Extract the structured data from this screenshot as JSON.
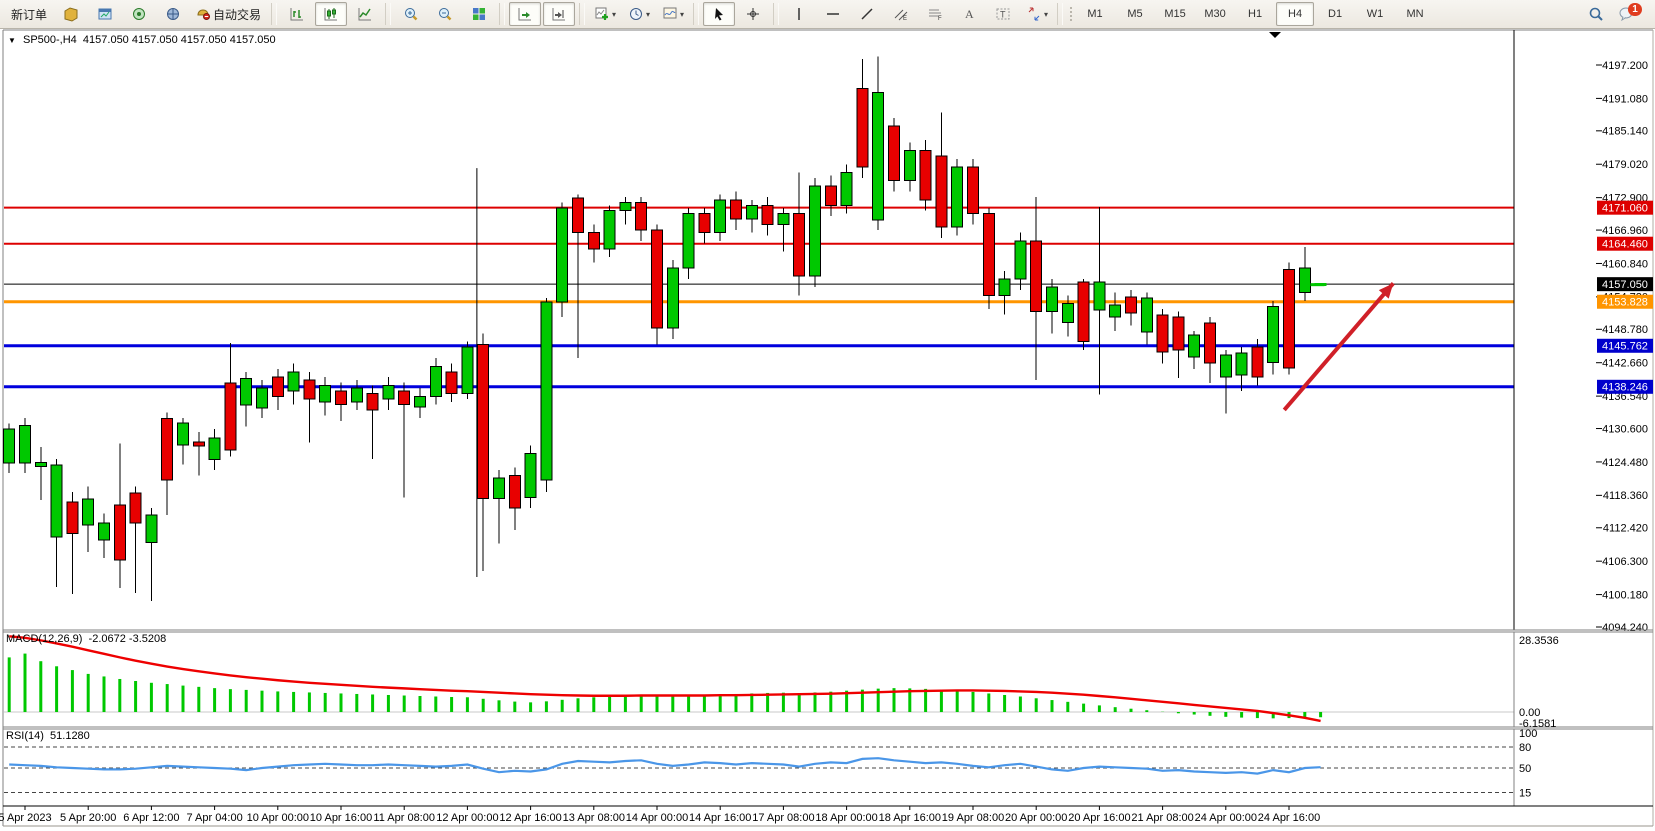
{
  "window": {
    "symbol_period": "SP500-,H4",
    "ohlc_line": "4157.050 4157.050 4157.050 4157.050"
  },
  "toolbar": {
    "buttons": [
      {
        "name": "new-order-button",
        "type": "text",
        "label": "新订单"
      },
      {
        "name": "charts-profile-icon",
        "type": "icon",
        "icon": "profile"
      },
      {
        "name": "market-watch-icon",
        "type": "icon",
        "icon": "market"
      },
      {
        "name": "data-window-icon",
        "type": "icon",
        "icon": "dataw"
      },
      {
        "name": "navigator-icon",
        "type": "icon",
        "icon": "navig"
      },
      {
        "name": "autotrading-button",
        "type": "icontext",
        "icon": "robot",
        "label": "自动交易"
      },
      {
        "name": "sep1",
        "type": "sep"
      },
      {
        "name": "bar-chart-button",
        "type": "icon",
        "icon": "bars"
      },
      {
        "name": "candlestick-chart-button",
        "type": "icon",
        "icon": "candles",
        "active": true
      },
      {
        "name": "line-chart-button",
        "type": "icon",
        "icon": "linec"
      },
      {
        "name": "sep2",
        "type": "sep"
      },
      {
        "name": "zoom-in-button",
        "type": "icon",
        "icon": "zoomin"
      },
      {
        "name": "zoom-out-button",
        "type": "icon",
        "icon": "zoomout"
      },
      {
        "name": "tile-windows-button",
        "type": "icon",
        "icon": "tiles"
      },
      {
        "name": "sep3",
        "type": "sep"
      },
      {
        "name": "auto-scroll-button",
        "type": "icon",
        "icon": "autoscroll",
        "active": true
      },
      {
        "name": "chart-shift-button",
        "type": "icon",
        "icon": "shift",
        "active": true
      },
      {
        "name": "sep4",
        "type": "sep"
      },
      {
        "name": "add-indicator-button",
        "type": "icon",
        "icon": "indic",
        "caret": true
      },
      {
        "name": "periods-button",
        "type": "icon",
        "icon": "clock",
        "caret": true
      },
      {
        "name": "templates-button",
        "type": "icon",
        "icon": "template",
        "caret": true
      },
      {
        "name": "sep5",
        "type": "sep"
      },
      {
        "name": "cursor-button",
        "type": "icon",
        "icon": "cursor",
        "active": true
      },
      {
        "name": "crosshair-button",
        "type": "icon",
        "icon": "crosshair"
      },
      {
        "name": "sep6",
        "type": "sep"
      },
      {
        "name": "vertical-line-button",
        "type": "icon",
        "icon": "vline"
      },
      {
        "name": "horizontal-line-button",
        "type": "icon",
        "icon": "hline"
      },
      {
        "name": "trendline-button",
        "type": "icon",
        "icon": "trend"
      },
      {
        "name": "channel-button",
        "type": "icon",
        "icon": "channel"
      },
      {
        "name": "fibonacci-button",
        "type": "icon",
        "icon": "fibo"
      },
      {
        "name": "text-button",
        "type": "icon",
        "icon": "texta"
      },
      {
        "name": "label-button",
        "type": "icon",
        "icon": "labelt"
      },
      {
        "name": "arrows-button",
        "type": "icon",
        "icon": "arrows",
        "caret": true
      },
      {
        "name": "sep7",
        "type": "sep"
      }
    ],
    "timeframes": [
      "M1",
      "M5",
      "M15",
      "M30",
      "H1",
      "H4",
      "D1",
      "W1",
      "MN"
    ],
    "active_timeframe": "H4",
    "notification_count": "1"
  },
  "chart_data": {
    "type": "candlestick",
    "title": "SP500-,H4",
    "symbol": "SP500-",
    "timeframe": "H4",
    "current_price": "4157.050",
    "price_axis_ticks": [
      {
        "p": 4197.2,
        "label": "4197.200"
      },
      {
        "p": 4191.08,
        "label": "4191.080"
      },
      {
        "p": 4185.14,
        "label": "4185.140"
      },
      {
        "p": 4179.02,
        "label": "4179.020"
      },
      {
        "p": 4172.9,
        "label": "4172.900"
      },
      {
        "p": 4166.96,
        "label": "4166.960"
      },
      {
        "p": 4160.84,
        "label": "4160.840"
      },
      {
        "p": 4154.72,
        "label": "4154.720"
      },
      {
        "p": 4148.78,
        "label": "4148.780"
      },
      {
        "p": 4142.66,
        "label": "4142.660"
      },
      {
        "p": 4136.54,
        "label": "4136.540"
      },
      {
        "p": 4130.6,
        "label": "4130.600"
      },
      {
        "p": 4124.48,
        "label": "4124.480"
      },
      {
        "p": 4118.36,
        "label": "4118.360"
      },
      {
        "p": 4112.42,
        "label": "4112.420"
      },
      {
        "p": 4106.3,
        "label": "4106.300"
      },
      {
        "p": 4100.18,
        "label": "4100.180"
      },
      {
        "p": 4094.24,
        "label": "4094.240"
      }
    ],
    "level_lines": [
      {
        "price": 4171.06,
        "label": "4171.060",
        "color": "#dd0000",
        "width": 2,
        "badge": "#dd0000"
      },
      {
        "price": 4164.46,
        "label": "4164.460",
        "color": "#dd0000",
        "width": 2,
        "badge": "#dd0000"
      },
      {
        "price": 4157.05,
        "label": "4157.050",
        "color": "#000000",
        "width": 1,
        "badge": "#000000"
      },
      {
        "price": 4153.828,
        "label": "4153.828",
        "color": "#ff9500",
        "width": 3,
        "badge": "#ff9500"
      },
      {
        "price": 4145.762,
        "label": "4145.762",
        "color": "#0000dd",
        "width": 3,
        "badge": "#0000cc"
      },
      {
        "price": 4138.246,
        "label": "4138.246",
        "color": "#0000dd",
        "width": 3,
        "badge": "#0000cc"
      }
    ],
    "time_labels": [
      "5 Apr 2023",
      "5 Apr 20:00",
      "6 Apr 12:00",
      "7 Apr 04:00",
      "10 Apr 00:00",
      "10 Apr 16:00",
      "11 Apr 08:00",
      "12 Apr 00:00",
      "12 Apr 16:00",
      "13 Apr 08:00",
      "14 Apr 00:00",
      "14 Apr 16:00",
      "17 Apr 08:00",
      "18 Apr 00:00",
      "18 Apr 16:00",
      "19 Apr 08:00",
      "20 Apr 00:00",
      "20 Apr 16:00",
      "21 Apr 08:00",
      "24 Apr 00:00",
      "24 Apr 16:00"
    ],
    "candles": [
      [
        4124.3,
        4131.5,
        4122.5,
        4130.5
      ],
      [
        4124.3,
        4132.5,
        4122.5,
        4131.2
      ],
      [
        4123.6,
        4127.2,
        4117.5,
        4124.4
      ],
      [
        4110.7,
        4125.0,
        4101.6,
        4123.9
      ],
      [
        4117.1,
        4119.0,
        4100.3,
        4111.4
      ],
      [
        4112.9,
        4120.0,
        4108.0,
        4117.7
      ],
      [
        4110.2,
        4115.0,
        4106.9,
        4113.3
      ],
      [
        4116.6,
        4127.9,
        4101.4,
        4106.5
      ],
      [
        4118.8,
        4120.0,
        4100.5,
        4113.3
      ],
      [
        4109.7,
        4116.0,
        4099.0,
        4114.8
      ],
      [
        4132.4,
        4133.5,
        4114.8,
        4121.2
      ],
      [
        4127.6,
        4132.5,
        4124.0,
        4131.6
      ],
      [
        4128.1,
        4130.0,
        4122.0,
        4127.4
      ],
      [
        4124.9,
        4130.5,
        4123.0,
        4128.9
      ],
      [
        4138.9,
        4146.3,
        4125.5,
        4126.7
      ],
      [
        4134.9,
        4141.0,
        4131.0,
        4139.8
      ],
      [
        4134.4,
        4139.5,
        4132.5,
        4138.0
      ],
      [
        4140.0,
        4141.5,
        4134.0,
        4136.5
      ],
      [
        4137.5,
        4142.5,
        4135.0,
        4141.0
      ],
      [
        4139.5,
        4141.0,
        4128.0,
        4136.0
      ],
      [
        4135.5,
        4140.0,
        4133.0,
        4138.5
      ],
      [
        4137.5,
        4139.0,
        4132.0,
        4135.0
      ],
      [
        4135.5,
        4139.5,
        4134.0,
        4138.0
      ],
      [
        4137.0,
        4138.5,
        4125.0,
        4134.0
      ],
      [
        4136.0,
        4140.0,
        4134.0,
        4138.5
      ],
      [
        4137.5,
        4139.0,
        4118.0,
        4135.0
      ],
      [
        4134.5,
        4138.0,
        4132.5,
        4136.5
      ],
      [
        4136.5,
        4143.5,
        4135.0,
        4142.0
      ],
      [
        4141.0,
        4142.5,
        4135.5,
        4137.0
      ],
      [
        4137.0,
        4146.5,
        4136.0,
        4145.5
      ],
      [
        4146.0,
        4148.0,
        4104.5,
        4117.8
      ],
      [
        4117.8,
        4123.0,
        4109.5,
        4121.5
      ],
      [
        4122.0,
        4123.5,
        4112.0,
        4116.0
      ],
      [
        4118.0,
        4127.5,
        4116.0,
        4126.0
      ],
      [
        4121.2,
        4154.5,
        4119.0,
        4153.8
      ],
      [
        4153.8,
        4172.0,
        4151.0,
        4171.0
      ],
      [
        4172.8,
        4173.5,
        4143.5,
        4166.5
      ],
      [
        4166.5,
        4168.0,
        4161.0,
        4163.5
      ],
      [
        4163.5,
        4171.5,
        4162.0,
        4170.5
      ],
      [
        4170.5,
        4173.0,
        4168.0,
        4172.0
      ],
      [
        4172.0,
        4173.0,
        4165.0,
        4167.0
      ],
      [
        4167.0,
        4168.0,
        4146.0,
        4149.0
      ],
      [
        4149.0,
        4161.5,
        4147.0,
        4160.0
      ],
      [
        4160.0,
        4171.0,
        4158.0,
        4170.0
      ],
      [
        4170.0,
        4171.0,
        4164.5,
        4166.5
      ],
      [
        4166.5,
        4173.5,
        4165.0,
        4172.5
      ],
      [
        4172.5,
        4174.0,
        4167.0,
        4169.0
      ],
      [
        4169.0,
        4172.5,
        4166.5,
        4171.5
      ],
      [
        4171.5,
        4173.0,
        4166.0,
        4168.0
      ],
      [
        4168.0,
        4171.0,
        4163.0,
        4170.0
      ],
      [
        4170.0,
        4177.5,
        4155.0,
        4158.5
      ],
      [
        4158.5,
        4176.5,
        4156.5,
        4175.0
      ],
      [
        4175.0,
        4177.0,
        4169.5,
        4171.5
      ],
      [
        4171.5,
        4179.0,
        4170.0,
        4177.5
      ],
      [
        4192.9,
        4198.3,
        4176.5,
        4178.5
      ],
      [
        4168.8,
        4198.8,
        4167.0,
        4192.2
      ],
      [
        4186.0,
        4187.5,
        4174.0,
        4176.0
      ],
      [
        4176.0,
        4183.0,
        4174.0,
        4181.5
      ],
      [
        4181.5,
        4183.5,
        4170.5,
        4172.5
      ],
      [
        4180.5,
        4188.5,
        4165.5,
        4167.5
      ],
      [
        4167.5,
        4180.0,
        4166.0,
        4178.5
      ],
      [
        4178.5,
        4180.0,
        4168.0,
        4170.0
      ],
      [
        4170.0,
        4171.0,
        4152.5,
        4155.0
      ],
      [
        4155.0,
        4159.5,
        4151.5,
        4158.0
      ],
      [
        4158.0,
        4166.5,
        4156.0,
        4165.0
      ],
      [
        4165.0,
        4173.0,
        4139.5,
        4152.0
      ],
      [
        4152.0,
        4158.0,
        4148.0,
        4156.5
      ],
      [
        4150.0,
        4155.0,
        4147.5,
        4153.5
      ],
      [
        4157.4,
        4158.0,
        4145.0,
        4146.5
      ],
      [
        4152.3,
        4171.2,
        4136.8,
        4157.4
      ],
      [
        4151.0,
        4155.5,
        4148.5,
        4153.2
      ],
      [
        4154.7,
        4156.0,
        4149.5,
        4151.8
      ],
      [
        4148.3,
        4155.5,
        4146.0,
        4154.5
      ],
      [
        4151.4,
        4152.5,
        4142.5,
        4144.6
      ],
      [
        4151.0,
        4152.0,
        4139.9,
        4145.0
      ],
      [
        4143.7,
        4148.5,
        4141.5,
        4147.7
      ],
      [
        4149.9,
        4151.0,
        4138.9,
        4142.6
      ],
      [
        4140.0,
        4145.0,
        4133.4,
        4144.1
      ],
      [
        4140.4,
        4145.5,
        4137.5,
        4144.4
      ],
      [
        4145.5,
        4147.0,
        4138.5,
        4140.0
      ],
      [
        4142.7,
        4154.0,
        4140.5,
        4153.0
      ],
      [
        4159.7,
        4161.0,
        4140.5,
        4141.7
      ],
      [
        4155.5,
        4163.9,
        4154.0,
        4160.0
      ],
      [
        4157.05,
        4157.05,
        4157.05,
        4157.05
      ]
    ],
    "macd": {
      "label": "MACD(12,26,9)",
      "values_label": "-2.0672 -3.5208",
      "scale": [
        {
          "v": 28.3536,
          "label": "28.3536"
        },
        {
          "v": 0,
          "label": "0.00"
        },
        {
          "v": -6.1581,
          "label": "-6.1581"
        }
      ],
      "histogram": [
        21.5,
        23.0,
        20.0,
        18.0,
        16.5,
        15.0,
        14.0,
        13.0,
        12.2,
        11.5,
        11.0,
        10.4,
        9.9,
        9.4,
        9.0,
        8.7,
        8.4,
        8.1,
        7.9,
        7.7,
        7.5,
        7.3,
        7.1,
        6.9,
        6.7,
        6.5,
        6.3,
        6.1,
        5.9,
        5.8,
        5.2,
        4.6,
        4.1,
        3.8,
        4.2,
        4.8,
        5.4,
        5.8,
        6.2,
        6.6,
        6.9,
        6.5,
        6.2,
        6.4,
        6.6,
        6.9,
        7.1,
        7.3,
        7.5,
        7.6,
        7.4,
        7.7,
        8.0,
        8.4,
        8.8,
        9.2,
        9.4,
        9.3,
        9.1,
        8.8,
        8.4,
        7.9,
        7.3,
        6.7,
        6.1,
        5.4,
        4.7,
        4.0,
        3.3,
        2.6,
        1.9,
        1.3,
        0.7,
        0.1,
        -0.5,
        -1.0,
        -1.5,
        -1.9,
        -2.2,
        -2.4,
        -2.5,
        -2.4,
        -2.2,
        -2.0672
      ],
      "signal": [
        29.8,
        29.2,
        28.2,
        27.0,
        25.7,
        24.3,
        22.9,
        21.5,
        20.2,
        19.0,
        17.9,
        16.9,
        16.0,
        15.2,
        14.4,
        13.7,
        13.1,
        12.5,
        12.0,
        11.5,
        11.1,
        10.7,
        10.3,
        9.9,
        9.6,
        9.3,
        9.0,
        8.7,
        8.4,
        8.2,
        7.9,
        7.6,
        7.3,
        7.0,
        6.8,
        6.6,
        6.5,
        6.4,
        6.4,
        6.4,
        6.5,
        6.5,
        6.5,
        6.5,
        6.5,
        6.6,
        6.6,
        6.7,
        6.8,
        6.9,
        7.0,
        7.1,
        7.2,
        7.4,
        7.6,
        7.8,
        8.0,
        8.2,
        8.3,
        8.4,
        8.5,
        8.5,
        8.4,
        8.3,
        8.1,
        7.9,
        7.6,
        7.2,
        6.8,
        6.3,
        5.8,
        5.2,
        4.6,
        4.0,
        3.4,
        2.8,
        2.2,
        1.6,
        1.0,
        0.4,
        -0.4,
        -1.3,
        -2.3,
        -3.5208
      ]
    },
    "rsi": {
      "label": "RSI(14)",
      "value_label": "51.1280",
      "levels": [
        {
          "v": 100,
          "label": "100"
        },
        {
          "v": 80,
          "label": "80"
        },
        {
          "v": 50,
          "label": "50"
        },
        {
          "v": 15,
          "label": "15"
        }
      ],
      "dashed_levels": [
        80,
        50,
        15
      ],
      "values": [
        55,
        54,
        53,
        51,
        50,
        49,
        48,
        48,
        49,
        51,
        53,
        52,
        51,
        50,
        49,
        47,
        50,
        52,
        54,
        55,
        56,
        55,
        54,
        54,
        55,
        54,
        53,
        52,
        53,
        55,
        49,
        44,
        46,
        45,
        48,
        56,
        60,
        59,
        58,
        60,
        61,
        56,
        53,
        55,
        58,
        57,
        55,
        57,
        56,
        55,
        52,
        56,
        58,
        57,
        63,
        64,
        61,
        59,
        57,
        58,
        56,
        53,
        51,
        54,
        56,
        52,
        48,
        46,
        50,
        52,
        51,
        50,
        49,
        46,
        47,
        45,
        44,
        43,
        44,
        42,
        47,
        44,
        50,
        51.128
      ]
    },
    "annotations": {
      "trend_arrow": {
        "color": "#d02028",
        "from_index": 80.7,
        "from_price": 4134.0,
        "to_index": 87.6,
        "to_price": 4157.2
      },
      "vertical_range_line": {
        "time_index": 29.6,
        "price_from": 4178.3,
        "price_to": 4103.4
      },
      "current_price_dash": {
        "index": 82.8,
        "price": 4157.05,
        "color": "#00c800"
      }
    },
    "colors": {
      "up": "#00c800",
      "down": "#e80000",
      "wick": "#000000",
      "rsi_line": "#4a96e8",
      "macd_signal": "#ee0000"
    }
  }
}
